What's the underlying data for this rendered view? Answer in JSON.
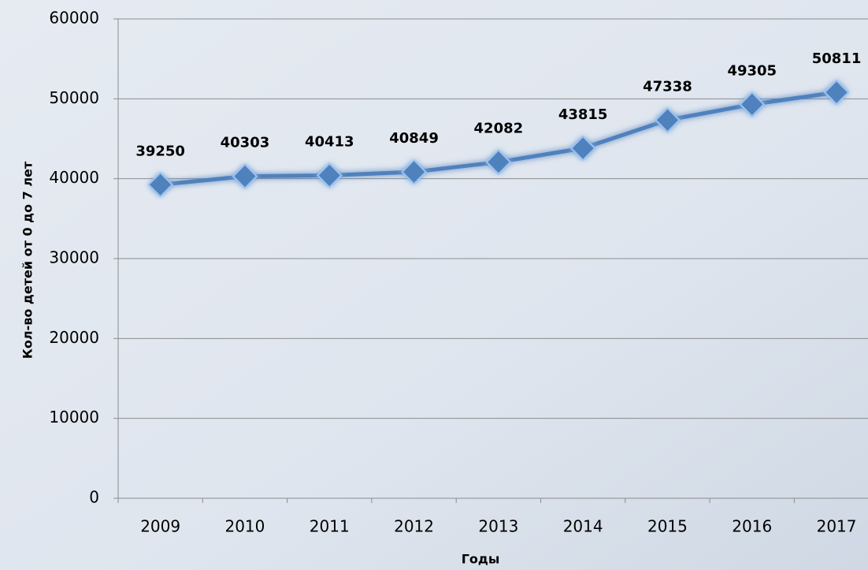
{
  "chart_data": {
    "type": "line",
    "y_label": "Кол-во детей от 0 до 7 лет",
    "x_label": "Годы",
    "categories": [
      "2009",
      "2010",
      "2011",
      "2012",
      "2013",
      "2014",
      "2015",
      "2016",
      "2017"
    ],
    "values": [
      39250,
      40303,
      40413,
      40849,
      42082,
      43815,
      47338,
      49305,
      50811
    ],
    "color": "#4f81bd",
    "ylim": [
      0,
      60000
    ],
    "yticks": [
      0,
      10000,
      20000,
      30000,
      40000,
      50000,
      60000
    ],
    "grid": true
  }
}
